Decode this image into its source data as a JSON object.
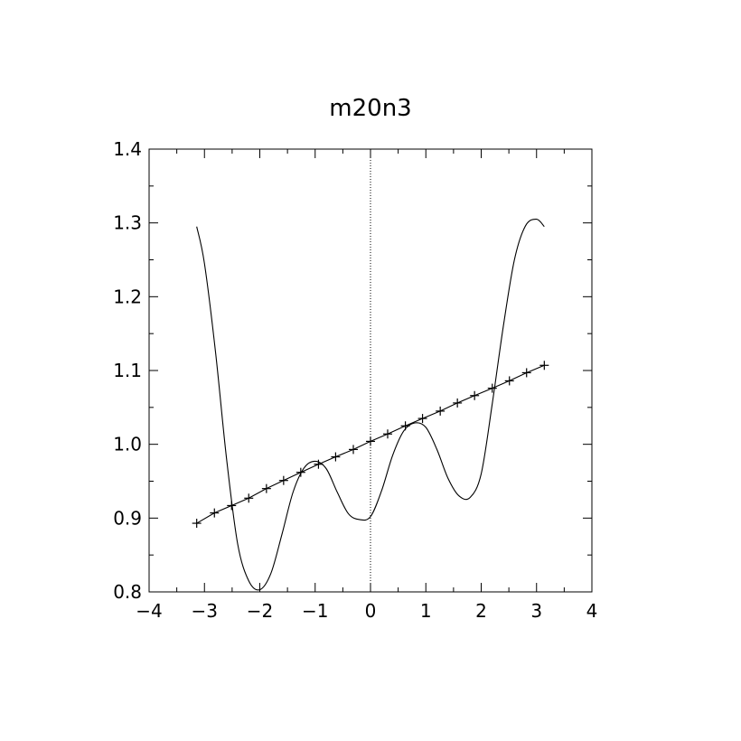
{
  "chart_data": {
    "type": "line",
    "title": "m20n3",
    "xlabel": "",
    "ylabel": "",
    "xlim": [
      -4,
      4
    ],
    "ylim": [
      0.8,
      1.4
    ],
    "x_ticks": [
      -4,
      -3,
      -2,
      -1,
      0,
      1,
      2,
      3,
      4
    ],
    "x_tick_labels": [
      "−4",
      "−3",
      "−2",
      "−1",
      "0",
      "1",
      "2",
      "3",
      "4"
    ],
    "y_ticks": [
      0.8,
      0.9,
      1.0,
      1.1,
      1.2,
      1.3,
      1.4
    ],
    "y_tick_labels": [
      "0.8",
      "0.9",
      "1.0",
      "1.1",
      "1.2",
      "1.3",
      "1.4"
    ],
    "grid": false,
    "reference_line": {
      "orientation": "vertical",
      "x": 0,
      "style": "dotted"
    },
    "series": [
      {
        "style": "line",
        "x": [
          -3.14,
          -3.0,
          -2.8,
          -2.6,
          -2.4,
          -2.2,
          -2.0,
          -1.8,
          -1.6,
          -1.4,
          -1.2,
          -1.0,
          -0.8,
          -0.6,
          -0.4,
          -0.2,
          0.0,
          0.2,
          0.4,
          0.6,
          0.8,
          1.0,
          1.2,
          1.4,
          1.6,
          1.8,
          2.0,
          2.2,
          2.4,
          2.6,
          2.8,
          3.0,
          3.14
        ],
        "y": [
          1.295,
          1.245,
          1.125,
          0.98,
          0.865,
          0.815,
          0.803,
          0.825,
          0.878,
          0.935,
          0.968,
          0.977,
          0.967,
          0.935,
          0.906,
          0.898,
          0.902,
          0.937,
          0.985,
          1.018,
          1.029,
          1.023,
          0.993,
          0.954,
          0.93,
          0.928,
          0.96,
          1.055,
          1.16,
          1.25,
          1.296,
          1.305,
          1.295
        ]
      },
      {
        "style": "line-plus-markers",
        "marker": "plus",
        "x": [
          -3.14,
          -2.82,
          -2.51,
          -2.2,
          -1.88,
          -1.57,
          -1.26,
          -0.94,
          -0.63,
          -0.31,
          0.0,
          0.31,
          0.63,
          0.94,
          1.26,
          1.57,
          1.88,
          2.2,
          2.51,
          2.82,
          3.14
        ],
        "y": [
          0.893,
          0.907,
          0.917,
          0.927,
          0.94,
          0.951,
          0.962,
          0.973,
          0.983,
          0.993,
          1.004,
          1.014,
          1.025,
          1.035,
          1.045,
          1.056,
          1.066,
          1.076,
          1.086,
          1.097,
          1.107
        ]
      }
    ]
  }
}
